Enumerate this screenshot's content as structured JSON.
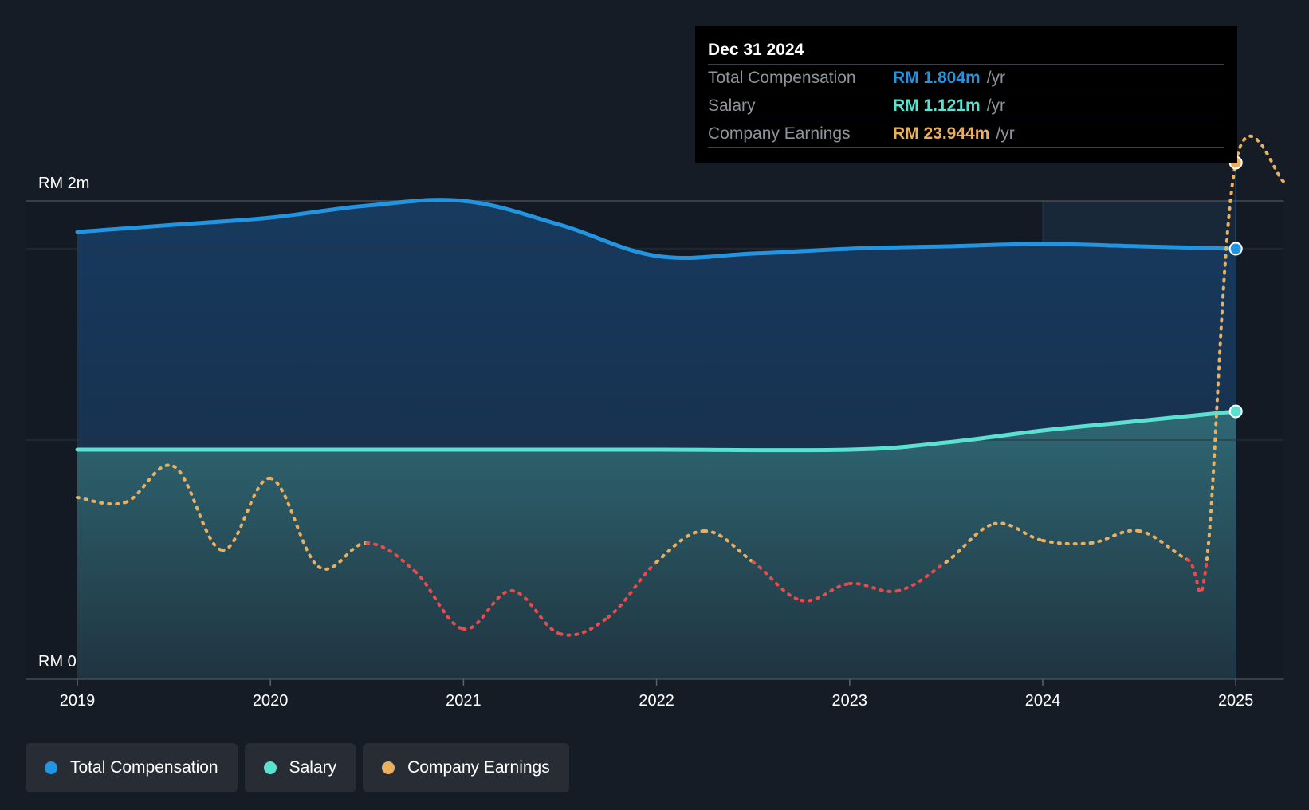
{
  "chart_data": {
    "type": "area",
    "y_axis": {
      "labels": [
        "RM 2m",
        "RM 0"
      ],
      "ylim": [
        0,
        2.2
      ]
    },
    "x_axis": {
      "tick_labels": [
        "2019",
        "2020",
        "2021",
        "2022",
        "2023",
        "2024",
        "2025"
      ]
    },
    "series": [
      {
        "name": "Total Compensation",
        "color": "#2394df",
        "x": [
          2019.0,
          2019.5,
          2020.0,
          2020.5,
          2021.0,
          2021.5,
          2022.0,
          2022.5,
          2023.0,
          2023.5,
          2024.0,
          2024.5,
          2025.0
        ],
        "values": [
          1.87,
          1.9,
          1.93,
          1.98,
          2.0,
          1.9,
          1.77,
          1.78,
          1.8,
          1.81,
          1.82,
          1.81,
          1.8
        ]
      },
      {
        "name": "Salary",
        "color": "#5ce0d0",
        "x": [
          2019.0,
          2020.0,
          2021.0,
          2022.0,
          2023.0,
          2023.5,
          2024.0,
          2024.5,
          2025.0
        ],
        "values": [
          0.96,
          0.96,
          0.96,
          0.96,
          0.96,
          0.99,
          1.04,
          1.08,
          1.12
        ]
      },
      {
        "name": "Company Earnings",
        "color": "#e9b060",
        "negative_color": "#e74c4c",
        "x": [
          2019.0,
          2019.25,
          2019.5,
          2019.75,
          2020.0,
          2020.25,
          2020.5,
          2020.75,
          2021.0,
          2021.25,
          2021.5,
          2021.75,
          2022.0,
          2022.25,
          2022.5,
          2022.75,
          2023.0,
          2023.25,
          2023.5,
          2023.75,
          2024.0,
          2024.25,
          2024.5,
          2024.75,
          2024.85,
          2025.0,
          2025.25
        ],
        "values": [
          0.76,
          0.74,
          0.89,
          0.54,
          0.84,
          0.47,
          0.57,
          0.45,
          0.21,
          0.37,
          0.19,
          0.26,
          0.49,
          0.62,
          0.49,
          0.33,
          0.4,
          0.37,
          0.49,
          0.65,
          0.58,
          0.57,
          0.62,
          0.5,
          0.5,
          2.16,
          2.08
        ]
      }
    ],
    "highlight_from": 2024.0
  },
  "tooltip": {
    "date": "Dec 31 2024",
    "rows": [
      {
        "label": "Total Compensation",
        "value": "RM 1.804m",
        "unit": "/yr",
        "color": "#2394df"
      },
      {
        "label": "Salary",
        "value": "RM 1.121m",
        "unit": "/yr",
        "color": "#5ce0d0"
      },
      {
        "label": "Company Earnings",
        "value": "RM 23.944m",
        "unit": "/yr",
        "color": "#e9b060"
      }
    ]
  },
  "legend": {
    "items": [
      {
        "label": "Total Compensation",
        "color": "#2394df"
      },
      {
        "label": "Salary",
        "color": "#5ce0d0"
      },
      {
        "label": "Company Earnings",
        "color": "#e9b060"
      }
    ]
  }
}
